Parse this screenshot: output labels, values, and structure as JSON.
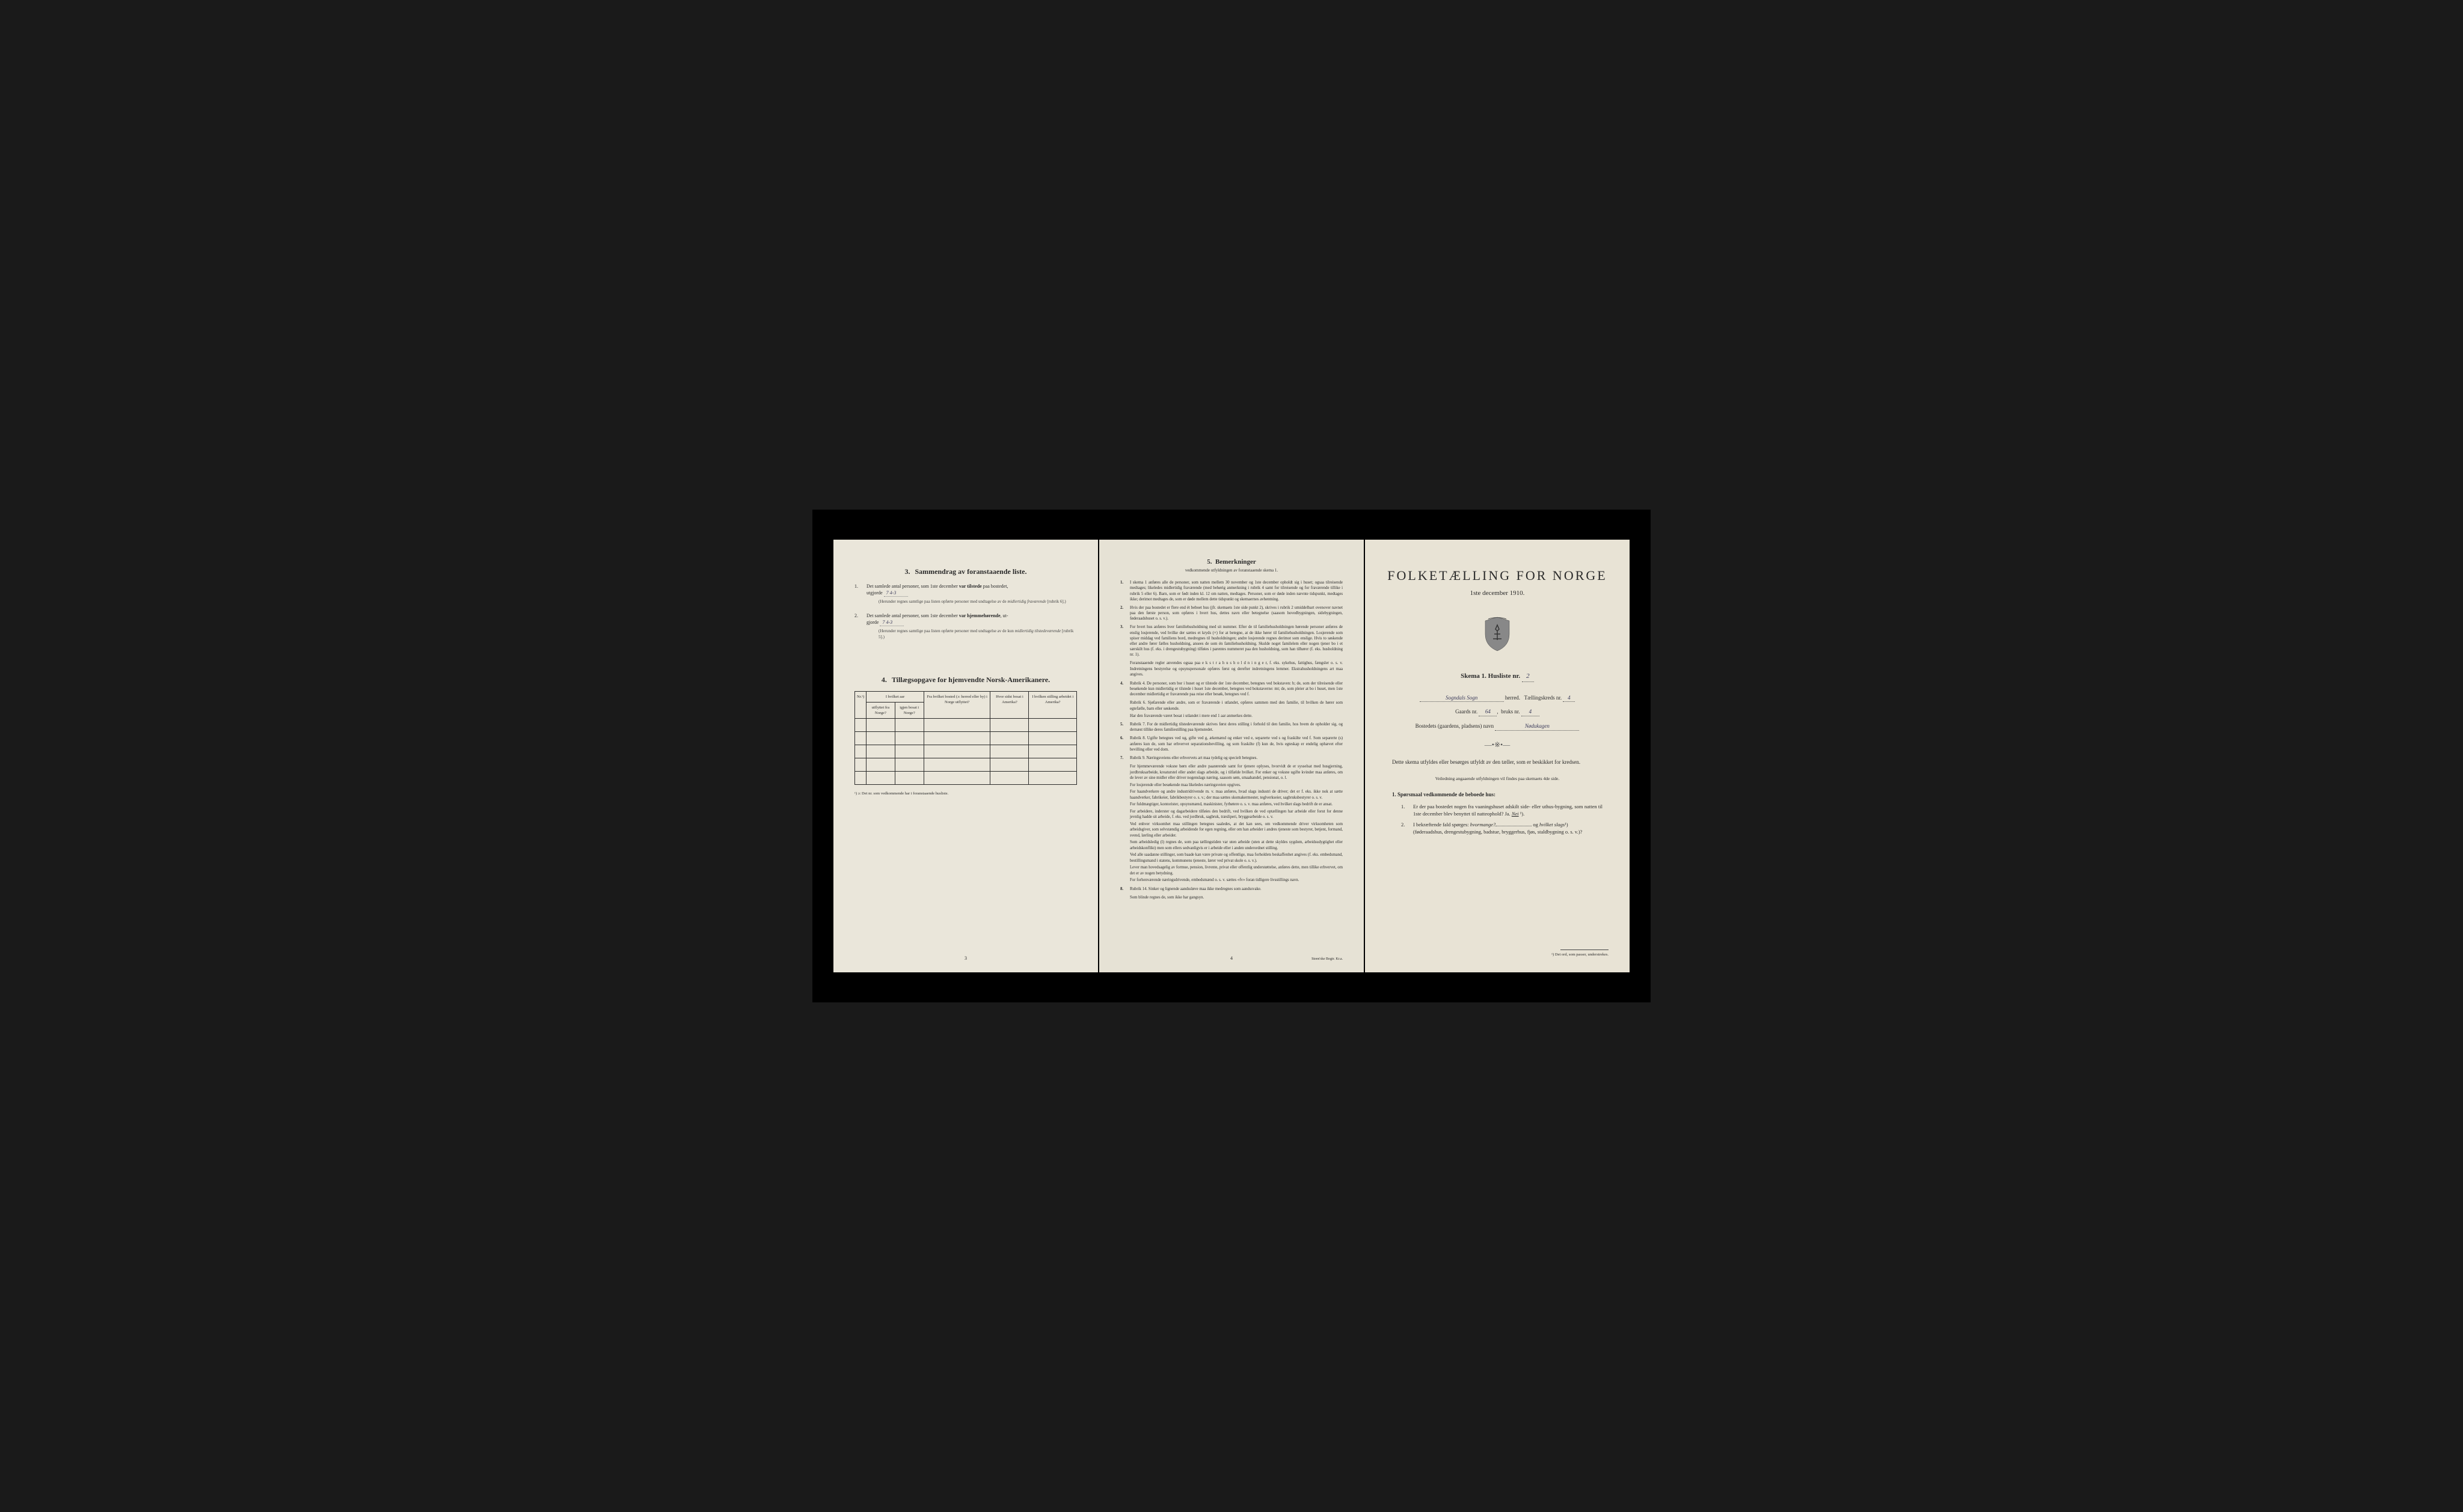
{
  "page1": {
    "section3": {
      "number": "3.",
      "title": "Sammendrag av foranstaaende liste.",
      "item1": {
        "n": "1.",
        "text_a": "Det samlede antal personer, som 1ste december ",
        "bold_a": "var tilstede",
        "text_b": " paa bostedet,",
        "text_c": "utgjorde ",
        "value": "7   4-3",
        "note": "(Herunder regnes samtlige paa listen opførte personer med undtagelse av de midlertidig fraværende [rubrik 6].)",
        "note_ital": "midlertidig fraværende"
      },
      "item2": {
        "n": "2.",
        "text_a": "Det samlede antal personer, som 1ste december ",
        "bold_a": "var hjemmehørende",
        "text_b": ", ut-",
        "text_c": "gjorde ",
        "value": "7   4-3",
        "note": "(Herunder regnes samtlige paa listen opførte personer med undtagelse av de kun midlertidig tilstedeværende [rubrik 5].)",
        "note_ital": "midlertidig tilstedeværende"
      }
    },
    "section4": {
      "number": "4.",
      "title": "Tillægsopgave for hjemvendte Norsk-Amerikanere.",
      "headers": {
        "nr": "Nr.¹)",
        "aar_group": "I hvilket aar",
        "utflyttet": "utflyttet fra Norge?",
        "igjen_bosat": "igjen bosat i Norge?",
        "bosted": "Fra hvilket bosted (ɔ: herred eller by) i Norge utflyttet?",
        "sidst": "Hvor sidst bosat i Amerika?",
        "stilling": "I hvilken stilling arbeidet i Amerika?"
      },
      "footnote": "¹) ɔ: Det nr. som vedkommende har i foranstaaende husliste."
    },
    "page_num": "3"
  },
  "page2": {
    "title_num": "5.",
    "title": "Bemerkninger",
    "subtitle": "vedkommende utfyldningen av foranstaaende skema 1.",
    "items": [
      {
        "n": "1.",
        "text": "I skema 1 anføres alle de personer, som natten mellem 30 november og 1ste december opholdt sig i huset; ogsaa tilreisende medtages; likeledes midlertidig fraværende (med behørig anmerkning i rubrik 4 samt for tilreisende og for fraværende tillike i rubrik 5 eller 6). Barn, som er født inden kl. 12 om natten, medtages. Personer, som er døde inden nævnte tidspunkt, medtages ikke; derimot medtages de, som er døde mellem dette tidspunkt og skemaernes avhentning."
      },
      {
        "n": "2.",
        "text": "Hvis der paa bostedet er flere end ét beboet hus (jfr. skemaets 1ste side punkt 2), skrives i rubrik 2 umiddelbart ovenover navnet paa den første person, som opføres i hvert hus, dettes navn eller betegnelse (saasom hovedbygningen, sidebygningen, føderaadshuset o. s. v.)."
      },
      {
        "n": "3.",
        "text": "For hvert hus anføres hver familiehusholdning med sit nummer. Efter de til familiehusholdningen hørende personer anføres de enslig losjerende, ved hvilke der sættes et kryds (×) for at betegne, at de ikke hører til familiehusholdningen. Losjerende som spiser middag ved familiens bord, medregnes til husholdningen; andre losjerende regnes derimot som enslige. Hvis to søskende eller andre fører fælles husholdning, ansees de som én familiehusholdning. Skulde noget familelem eller nogen tjener bo i et særskilt hus (f. eks. i drengestubygning) tilføies i parentes nummeret paa den husholdning, som han tilhører (f. eks. husholdning nr. 1).",
        "sub": "Foranstaaende regler anvendes ogsaa paa e k s t r a h u s h o l d n i n g e r, f. eks. sykehus, fattighus, fængsler o. s. v. Indretningens bestyrelse og opsynspersonale opføres først og derefter indretningens lemmer. Ekstrahusholdningens art maa angives."
      },
      {
        "n": "4.",
        "text": "Rubrik 4. De personer, som bor i huset og er tilstede der 1ste december, betegnes ved bokstaven: b; de, som der tilreisende eller besøkende kun midlertidig er tilstede i huset 1ste december, betegnes ved bokstaverne: mt; de, som pleier at bo i huset, men 1ste december midlertidig er fraværende paa reise eller besøk, betegnes ved f.",
        "sub": "Rubrik 6. Sjøfarende eller andre, som er fraværende i utlandet, opføres sammen med den familie, til hvilken de hører som egtefælle, barn eller søskende.",
        "sub2": "Har den fraværende været bosat i utlandet i mere end 1 aar anmerkes dette."
      },
      {
        "n": "5.",
        "text": "Rubrik 7. For de midlertidig tilstedeværende skrives først deres stilling i forhold til den familie, hos hvem de opholder sig, og dernæst tillike deres familiestilling paa hjemstedet."
      },
      {
        "n": "6.",
        "text": "Rubrik 8. Ugifte betegnes ved ug, gifte ved g, ækemænd og enker ved e, separerte ved s og fraskilte ved f. Som separerte (s) anføres kun de, som har erhvervet separationsbevilling, og som fraskilte (f) kun de, hvis egteskap er endelig ophævet efter bevilling eller ved dom."
      },
      {
        "n": "7.",
        "text": "Rubrik 9. Næringsveiens eller erhvervets art maa tydelig og specielt betegnes.",
        "subs": [
          "For hjemmeværende voksne børn eller andre paarørende samt for tjenere oplyses, hvorvidt de er sysselsat med husgjerning, jordbruksarbeide, kreaturstel eller andet slags arbeide, og i tilfælde hvilket. For enker og voksne ugifte kvinder maa anføres, om de lever av sine midler eller driver nogenslags næring, saasom søm, smaahandel, pensionat, o. l.",
          "For losjerende eller besøkende maa likeledes næringsveien opgives.",
          "For haandverkere og andre industridrivende m. v. maa anføres, hvad slags industri de driver; det er f. eks. ikke nok at sætte haandverker, fabrikeier, fabrikbestyrer o. s. v.; der maa sættes skomakermester, teglverkseier, sagbruksbestyrer o. s. v.",
          "For fuldmægtiger, kontorister, opsynsmænd, maskinister, fyrbøtere o. s. v. maa anføres, ved hvilket slags bedrift de er ansat.",
          "For arbeidere, inderster og dagarbeidere tilføies den bedrift, ved hvilken de ved optællingen har arbeide eller forut for denne jevnlig hadde sit arbeide, f. eks. ved jordbruk, sagbruk, træsliperi, bryggearbeide o. s. v.",
          "Ved enhver virksomhet maa stillingen betegnes saaledes, at det kan sees, om vedkommende driver virksomheten som arbeidsgiver, som selvstændig arbeidende for egen regning, eller om han arbeider i andres tjeneste som bestyrer, betjent, formand, svend, lærling eller arbeider.",
          "Som arbeidsledig (l) regnes de, som paa tællingstiden var uten arbeide (uten at dette skyldes sygdom, arbeidsudygtighet eller arbeidskonflikt) men som ellers sedvanligvis er i arbeide eller i anden underordnet stilling.",
          "Ved alle saadanne stillinger, som baade kan være private og offentlige, maa forholdets beskaffenhet angives (f. eks. embedsmand, bestillingsmand i statens, kommunens tjeneste, lærer ved privat skole o. s. v.).",
          "Lever man hovedsagelig av formue, pension, livrente, privat eller offentlig understøttelse, anføres dette, men tillike erhvervet, om det er av nogen betydning.",
          "For forhenværende næringsdrivende, embedsmænd o. s. v. sættes «fv» foran tidligere livsstillings navn."
        ]
      },
      {
        "n": "8.",
        "text": "Rubrik 14. Sinker og lignende aandssløve maa ikke medregnes som aandssvake.",
        "sub": "Som blinde regnes de, som ikke har gangsyn."
      }
    ],
    "page_num": "4",
    "printer": "Steen'ske Bogtr.   Kr.a."
  },
  "page3": {
    "main_title": "FOLKETÆLLING FOR NORGE",
    "date": "1ste december 1910.",
    "skema_label": "Skema 1.   Husliste nr.",
    "husliste_nr": "2",
    "herred_value": "Sogndals Sogn",
    "herred_label": "herred.",
    "kreds_label": "Tællingskreds nr.",
    "kreds_nr": "4",
    "gaard_label": "Gaards nr.",
    "gaard_nr": "64",
    "bruks_label": "bruks nr.",
    "bruks_nr": "4",
    "bosted_label": "Bostedets (gaardens, pladsens) navn",
    "bosted_value": "Nødukagen",
    "body_text": "Dette skema utfyldes eller besørges utfyldt av den tæller, som er beskikket for kredsen.",
    "body_sub": "Veiledning angaaende utfyldningen vil findes paa skemaets 4de side.",
    "q_head_num": "1.",
    "q_head": "Spørsmaal vedkommende de beboede hus:",
    "q1": {
      "n": "1.",
      "text": "Er der paa bostedet nogen fra vaaningshuset adskilt side- eller uthus-bygning, som natten til 1ste december blev benyttet til natteophold?   Ja.   ",
      "answer": "Nei",
      "suffix": " ¹)."
    },
    "q2": {
      "n": "2.",
      "text_a": "I bekræftende fald spørges: ",
      "ital_a": "hvormange?",
      "text_b": "  og ",
      "ital_b": "hvilket slags",
      "suffix": "¹)",
      "text_c": "(føderaadshus, drengestubygning, badstue, bryggerhus, fjøs, staldbygning o. s. v.)?"
    },
    "footnote": "¹) Det ord, som passer, understrekes."
  }
}
